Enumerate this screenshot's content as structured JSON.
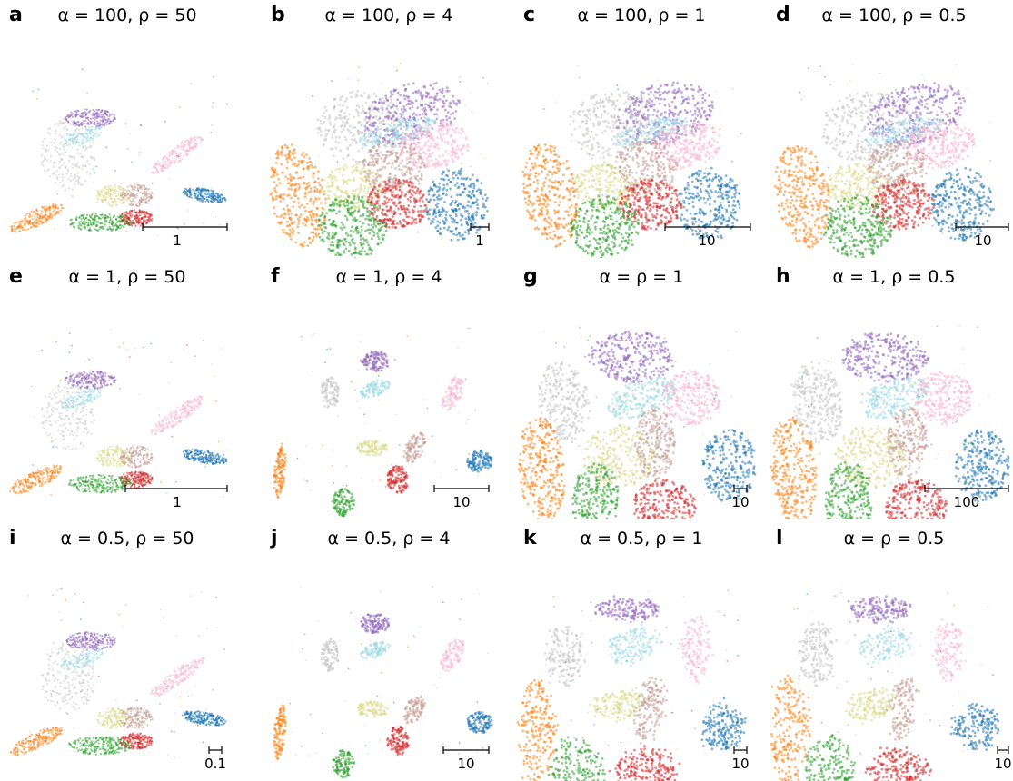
{
  "colors": {
    "gray": "#c7c7c7",
    "purple": "#9467bd",
    "cyan": "#9edae5",
    "pink": "#f7b6d2",
    "orange": "#ff7f0e",
    "olive": "#dbdb8d",
    "brown": "#c49c94",
    "red": "#d62728",
    "green": "#2ca02c",
    "blue": "#1f77b4"
  },
  "panels": [
    {
      "letter": "a",
      "title": "α = 100, ρ = 50",
      "scalebar": "1",
      "layout": "umap"
    },
    {
      "letter": "b",
      "title": "α = 100, ρ = 4",
      "scalebar": "1",
      "layout": "blob"
    },
    {
      "letter": "c",
      "title": "α = 100, ρ = 1",
      "scalebar": "10",
      "layout": "blob"
    },
    {
      "letter": "d",
      "title": "α = 100, ρ = 0.5",
      "scalebar": "10",
      "layout": "blob"
    },
    {
      "letter": "e",
      "title": "α = 1, ρ = 50",
      "scalebar": "1",
      "layout": "umap"
    },
    {
      "letter": "f",
      "title": "α = 1, ρ = 4",
      "scalebar": "10",
      "layout": "clusters"
    },
    {
      "letter": "g",
      "title": "α = ρ = 1",
      "scalebar": "10",
      "layout": "tiles"
    },
    {
      "letter": "h",
      "title": "α = 1, ρ = 0.5",
      "scalebar": "100",
      "layout": "tiles"
    },
    {
      "letter": "i",
      "title": "α = 0.5, ρ = 50",
      "scalebar": "0.1",
      "layout": "umap"
    },
    {
      "letter": "j",
      "title": "α = 0.5, ρ = 4",
      "scalebar": "10",
      "layout": "clusters"
    },
    {
      "letter": "k",
      "title": "α = 0.5, ρ = 1",
      "scalebar": "10",
      "layout": "fragments"
    },
    {
      "letter": "l",
      "title": "α = ρ = 0.5",
      "scalebar": "10",
      "layout": "fragments"
    }
  ],
  "chart_data": {
    "type": "scatter",
    "classes": [
      "gray",
      "purple",
      "cyan",
      "pink",
      "orange",
      "olive",
      "brown",
      "red",
      "green",
      "blue"
    ],
    "grid": false,
    "legend": "none"
  }
}
